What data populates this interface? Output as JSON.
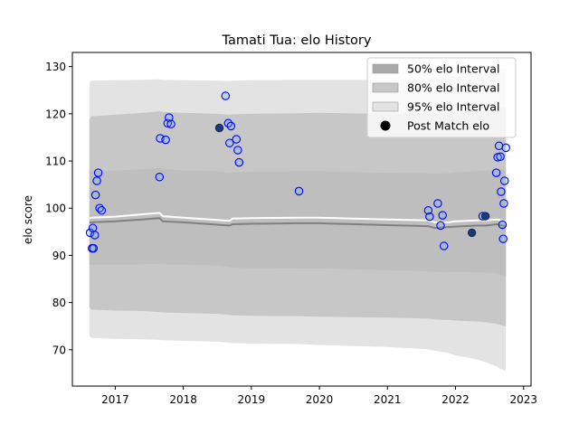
{
  "chart_data": {
    "type": "line",
    "title": "Tamati Tua: elo History",
    "xlabel": "",
    "ylabel": "elo score",
    "xlim": [
      2016.37,
      2023.11
    ],
    "ylim": [
      62.3,
      133.0
    ],
    "xticks": [
      2017,
      2018,
      2019,
      2020,
      2021,
      2022,
      2023
    ],
    "yticks": [
      70,
      80,
      90,
      100,
      110,
      120,
      130
    ],
    "grid": false,
    "legend_position": "top-right",
    "legend": [
      {
        "key": "band50",
        "label": "50% elo Interval",
        "color": "#aaaaaa"
      },
      {
        "key": "band80",
        "label": "80% elo Interval",
        "color": "#c7c7c7"
      },
      {
        "key": "band95",
        "label": "95% elo Interval",
        "color": "#e3e3e3"
      },
      {
        "key": "post",
        "label": "Post Match elo",
        "color": "#000000"
      }
    ],
    "colors": {
      "band95": "#e3e3e3",
      "band80": "#c7c7c7",
      "band50": "#aaaaaa",
      "mean_line": "#ffffff",
      "median_line": "#808080",
      "marker_edge": "#0000ff",
      "marker_face": "#5ab0ff",
      "post_marker_face": "#1a3a7a"
    },
    "bands": {
      "x": [
        2016.62,
        2016.65,
        2017.0,
        2017.4,
        2017.65,
        2017.7,
        2018.0,
        2018.5,
        2018.68,
        2018.72,
        2019.0,
        2019.7,
        2020.0,
        2021.0,
        2021.6,
        2021.7,
        2021.9,
        2022.0,
        2022.3,
        2022.45,
        2022.6,
        2022.65,
        2022.72,
        2022.74
      ],
      "mean": [
        97.8,
        98.0,
        98.2,
        98.7,
        99.0,
        98.3,
        98.0,
        97.5,
        97.3,
        97.8,
        97.9,
        98.0,
        98.0,
        97.6,
        97.4,
        97.0,
        97.0,
        97.2,
        97.4,
        97.4,
        97.6,
        97.5,
        97.2,
        97.2
      ],
      "p50_low": [
        96.9,
        97.0,
        97.2,
        97.6,
        97.9,
        97.2,
        97.0,
        96.5,
        96.3,
        96.6,
        96.7,
        96.8,
        96.8,
        96.4,
        96.2,
        95.8,
        96.0,
        96.1,
        96.3,
        96.3,
        96.6,
        96.5,
        96.2,
        96.2
      ],
      "p50_high": [
        108.0,
        108.0,
        108.0,
        108.2,
        108.5,
        108.3,
        108.0,
        107.8,
        107.5,
        107.6,
        107.7,
        107.8,
        107.8,
        107.5,
        107.4,
        107.3,
        107.4,
        107.6,
        107.8,
        108.0,
        108.2,
        108.3,
        108.3,
        108.3
      ],
      "p50_low_edge": [
        88.0,
        88.0,
        88.0,
        88.1,
        88.2,
        88.1,
        88.0,
        87.8,
        87.5,
        87.4,
        87.3,
        87.2,
        87.2,
        86.9,
        86.6,
        86.5,
        86.4,
        86.5,
        86.4,
        86.3,
        86.2,
        86.0,
        85.5,
        85.5
      ],
      "p80_high": [
        118.8,
        119.5,
        119.8,
        120.2,
        120.5,
        120.4,
        120.2,
        120.0,
        119.8,
        119.9,
        120.0,
        120.1,
        120.2,
        120.0,
        120.0,
        120.0,
        120.1,
        120.3,
        120.6,
        120.9,
        121.2,
        121.3,
        121.4,
        121.4
      ],
      "p80_low": [
        79.0,
        78.5,
        78.3,
        78.2,
        78.0,
        77.9,
        77.8,
        77.6,
        77.4,
        77.3,
        77.2,
        77.1,
        77.0,
        76.8,
        76.6,
        76.4,
        76.3,
        76.2,
        76.0,
        75.8,
        75.5,
        75.3,
        75.0,
        75.0
      ],
      "p95_high": [
        126.5,
        127.0,
        127.1,
        127.2,
        127.3,
        127.2,
        127.1,
        127.0,
        126.9,
        127.0,
        127.1,
        127.2,
        127.2,
        127.2,
        127.3,
        127.5,
        127.8,
        128.0,
        128.3,
        128.6,
        129.0,
        129.3,
        129.6,
        129.6
      ],
      "p95_low": [
        73.0,
        72.5,
        72.3,
        72.2,
        72.1,
        72.0,
        71.9,
        71.7,
        71.5,
        71.4,
        71.3,
        71.2,
        71.0,
        70.6,
        70.1,
        69.8,
        69.3,
        68.8,
        68.0,
        67.3,
        66.5,
        66.0,
        65.6,
        65.6
      ]
    },
    "match_points": [
      {
        "x": 2016.63,
        "y": 94.8
      },
      {
        "x": 2016.66,
        "y": 91.5
      },
      {
        "x": 2016.67,
        "y": 95.8
      },
      {
        "x": 2016.68,
        "y": 91.5
      },
      {
        "x": 2016.7,
        "y": 94.3
      },
      {
        "x": 2016.71,
        "y": 102.8
      },
      {
        "x": 2016.73,
        "y": 105.8
      },
      {
        "x": 2016.75,
        "y": 107.5
      },
      {
        "x": 2016.77,
        "y": 100.0
      },
      {
        "x": 2016.8,
        "y": 99.5
      },
      {
        "x": 2017.65,
        "y": 106.6
      },
      {
        "x": 2017.66,
        "y": 114.8
      },
      {
        "x": 2017.74,
        "y": 114.5
      },
      {
        "x": 2017.77,
        "y": 118.0
      },
      {
        "x": 2017.79,
        "y": 119.2
      },
      {
        "x": 2017.82,
        "y": 117.8
      },
      {
        "x": 2018.62,
        "y": 123.8
      },
      {
        "x": 2018.66,
        "y": 118.0
      },
      {
        "x": 2018.68,
        "y": 113.8
      },
      {
        "x": 2018.7,
        "y": 117.4
      },
      {
        "x": 2018.78,
        "y": 114.6
      },
      {
        "x": 2018.8,
        "y": 112.3
      },
      {
        "x": 2018.82,
        "y": 109.7
      },
      {
        "x": 2019.7,
        "y": 103.6
      },
      {
        "x": 2021.6,
        "y": 99.5
      },
      {
        "x": 2021.62,
        "y": 98.2
      },
      {
        "x": 2021.74,
        "y": 101.0
      },
      {
        "x": 2021.78,
        "y": 96.3
      },
      {
        "x": 2021.81,
        "y": 98.5
      },
      {
        "x": 2021.83,
        "y": 92.0
      },
      {
        "x": 2022.4,
        "y": 98.3
      },
      {
        "x": 2022.6,
        "y": 107.5
      },
      {
        "x": 2022.62,
        "y": 110.8
      },
      {
        "x": 2022.64,
        "y": 113.2
      },
      {
        "x": 2022.66,
        "y": 110.9
      },
      {
        "x": 2022.67,
        "y": 103.5
      },
      {
        "x": 2022.69,
        "y": 96.5
      },
      {
        "x": 2022.7,
        "y": 93.5
      },
      {
        "x": 2022.71,
        "y": 101.0
      },
      {
        "x": 2022.72,
        "y": 105.8
      },
      {
        "x": 2022.74,
        "y": 112.8
      }
    ],
    "post_match_points": [
      {
        "x": 2018.53,
        "y": 117.0
      },
      {
        "x": 2022.24,
        "y": 94.8
      },
      {
        "x": 2022.44,
        "y": 98.3
      }
    ]
  }
}
